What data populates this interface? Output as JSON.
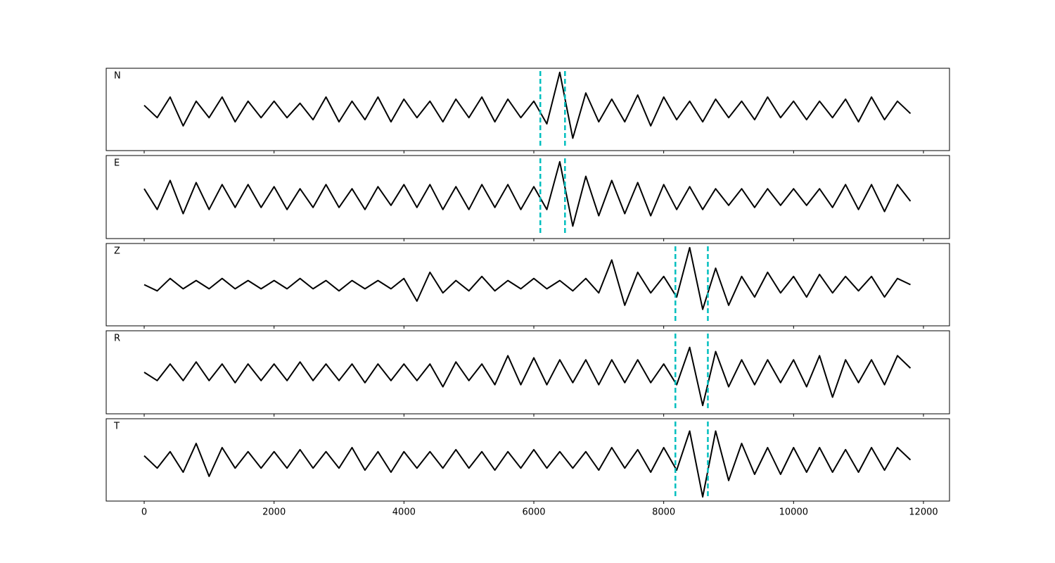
{
  "chart_data": {
    "type": "line",
    "x": [
      0,
      200,
      400,
      600,
      800,
      1000,
      1200,
      1400,
      1600,
      1800,
      2000,
      2200,
      2400,
      2600,
      2800,
      3000,
      3200,
      3400,
      3600,
      3800,
      4000,
      4200,
      4400,
      4600,
      4800,
      5000,
      5200,
      5400,
      5600,
      5800,
      6000,
      6200,
      6400,
      6600,
      6800,
      7000,
      7200,
      7400,
      7600,
      7800,
      8000,
      8200,
      8400,
      8600,
      8800,
      9000,
      9200,
      9400,
      9600,
      9800,
      10000,
      10200,
      10400,
      10600,
      10800,
      11000,
      11200,
      11400,
      11600,
      11800
    ],
    "xlim": [
      -585,
      12401
    ],
    "xticks": [
      0,
      2000,
      4000,
      6000,
      8000,
      10000,
      12000
    ],
    "ylim": [
      -1,
      1
    ],
    "color": "#000000",
    "marker_color": "#00bfbf",
    "series": [
      {
        "name": "N",
        "markers": [
          6100,
          6480
        ],
        "values": [
          0.1,
          -0.2,
          0.3,
          -0.4,
          0.2,
          -0.2,
          0.3,
          -0.3,
          0.2,
          -0.2,
          0.2,
          -0.2,
          0.15,
          -0.25,
          0.3,
          -0.3,
          0.2,
          -0.25,
          0.3,
          -0.3,
          0.25,
          -0.2,
          0.2,
          -0.3,
          0.25,
          -0.2,
          0.3,
          -0.3,
          0.25,
          -0.2,
          0.2,
          -0.35,
          0.9,
          -0.7,
          0.4,
          -0.3,
          0.25,
          -0.3,
          0.35,
          -0.4,
          0.3,
          -0.25,
          0.2,
          -0.3,
          0.25,
          -0.2,
          0.2,
          -0.25,
          0.3,
          -0.2,
          0.2,
          -0.25,
          0.2,
          -0.2,
          0.25,
          -0.3,
          0.3,
          -0.25,
          0.2,
          -0.1
        ]
      },
      {
        "name": "E",
        "markers": [
          6100,
          6480
        ],
        "values": [
          0.2,
          -0.3,
          0.4,
          -0.4,
          0.35,
          -0.3,
          0.3,
          -0.25,
          0.3,
          -0.25,
          0.25,
          -0.3,
          0.2,
          -0.25,
          0.3,
          -0.25,
          0.2,
          -0.3,
          0.25,
          -0.2,
          0.3,
          -0.25,
          0.3,
          -0.3,
          0.25,
          -0.3,
          0.3,
          -0.25,
          0.3,
          -0.3,
          0.25,
          -0.3,
          0.85,
          -0.7,
          0.5,
          -0.45,
          0.4,
          -0.4,
          0.35,
          -0.45,
          0.3,
          -0.3,
          0.25,
          -0.3,
          0.2,
          -0.2,
          0.2,
          -0.25,
          0.2,
          -0.2,
          0.2,
          -0.2,
          0.2,
          -0.25,
          0.3,
          -0.3,
          0.3,
          -0.35,
          0.3,
          -0.1
        ]
      },
      {
        "name": "Z",
        "markers": [
          8180,
          8680
        ],
        "values": [
          0.0,
          -0.15,
          0.15,
          -0.1,
          0.1,
          -0.1,
          0.15,
          -0.1,
          0.1,
          -0.1,
          0.1,
          -0.1,
          0.15,
          -0.1,
          0.1,
          -0.15,
          0.1,
          -0.1,
          0.1,
          -0.1,
          0.15,
          -0.4,
          0.3,
          -0.2,
          0.1,
          -0.15,
          0.2,
          -0.15,
          0.1,
          -0.1,
          0.15,
          -0.1,
          0.1,
          -0.15,
          0.15,
          -0.2,
          0.6,
          -0.5,
          0.3,
          -0.2,
          0.2,
          -0.3,
          0.9,
          -0.6,
          0.4,
          -0.5,
          0.2,
          -0.3,
          0.3,
          -0.2,
          0.2,
          -0.3,
          0.25,
          -0.2,
          0.2,
          -0.15,
          0.2,
          -0.3,
          0.15,
          0.0
        ]
      },
      {
        "name": "R",
        "markers": [
          8180,
          8680
        ],
        "values": [
          0.0,
          -0.2,
          0.2,
          -0.2,
          0.25,
          -0.2,
          0.2,
          -0.25,
          0.2,
          -0.2,
          0.2,
          -0.2,
          0.25,
          -0.2,
          0.2,
          -0.2,
          0.2,
          -0.25,
          0.2,
          -0.2,
          0.2,
          -0.2,
          0.2,
          -0.35,
          0.25,
          -0.2,
          0.2,
          -0.3,
          0.4,
          -0.3,
          0.35,
          -0.3,
          0.3,
          -0.25,
          0.3,
          -0.3,
          0.3,
          -0.25,
          0.3,
          -0.25,
          0.2,
          -0.3,
          0.6,
          -0.8,
          0.5,
          -0.35,
          0.3,
          -0.3,
          0.3,
          -0.25,
          0.3,
          -0.35,
          0.4,
          -0.6,
          0.3,
          -0.25,
          0.3,
          -0.3,
          0.4,
          0.1
        ]
      },
      {
        "name": "T",
        "markers": [
          8180,
          8680
        ],
        "values": [
          0.1,
          -0.2,
          0.2,
          -0.3,
          0.4,
          -0.4,
          0.3,
          -0.2,
          0.2,
          -0.2,
          0.2,
          -0.2,
          0.25,
          -0.2,
          0.2,
          -0.2,
          0.3,
          -0.25,
          0.2,
          -0.3,
          0.2,
          -0.2,
          0.2,
          -0.2,
          0.25,
          -0.2,
          0.2,
          -0.25,
          0.2,
          -0.2,
          0.25,
          -0.2,
          0.2,
          -0.2,
          0.2,
          -0.25,
          0.3,
          -0.2,
          0.25,
          -0.3,
          0.3,
          -0.25,
          0.7,
          -0.9,
          0.7,
          -0.5,
          0.4,
          -0.35,
          0.3,
          -0.35,
          0.3,
          -0.3,
          0.3,
          -0.3,
          0.25,
          -0.3,
          0.3,
          -0.25,
          0.3,
          0.0
        ]
      }
    ]
  }
}
